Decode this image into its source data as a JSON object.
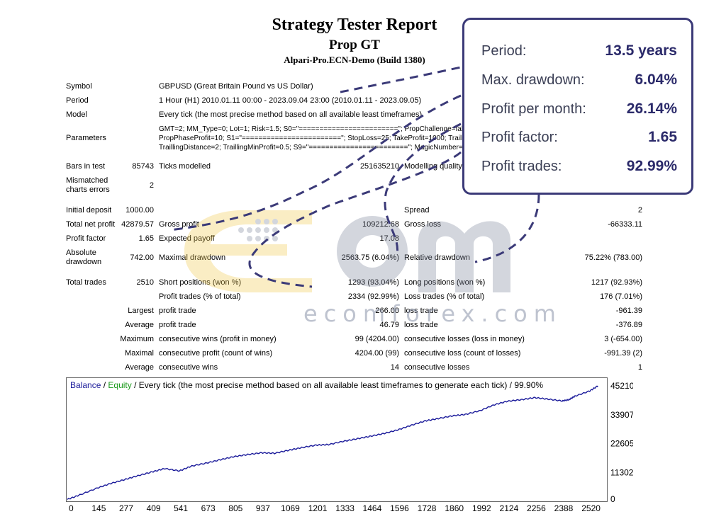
{
  "report": {
    "title": "Strategy Tester Report",
    "expert": "Prop GT",
    "server": "Alpari-Pro.ECN-Demo (Build 1380)"
  },
  "info": {
    "symbol_label": "Symbol",
    "symbol_value": "GBPUSD (Great Britain Pound vs US Dollar)",
    "period_label": "Period",
    "period_value": "1 Hour (H1) 2010.01.11 00:00 - 2023.09.04 23:00 (2010.01.11 - 2023.09.05)",
    "model_label": "Model",
    "model_value": "Every tick (the most precise method based on all available least timeframes)",
    "parameters_label": "Parameters",
    "parameters_line1": "GMT=2; MM_Type=0; Lot=1; Risk=1.5; S0=\"========================\"; PropChallenge=false; PropDailyDD=5; PropMaxDD=10;",
    "parameters_line2": "PropPhaseProfit=10; S1=\"========================\"; StopLoss=25; TakeProfit=1000; TrailingOn=true;",
    "parameters_line3": "TraillingDistance=2; TraillingMinProfit=0.5; S9=\"========================\"; MagicNumber=9542033; __com=\"Prop GT\";"
  },
  "bars": {
    "bars_label": "Bars in test",
    "bars_value": "85743",
    "ticks_label": "Ticks modelled",
    "ticks_value": "251635210",
    "quality_label": "Modelling quality",
    "mismatch_label_1": "Mismatched",
    "mismatch_label_2": "charts errors",
    "mismatch_value": "2"
  },
  "stats": {
    "initial_deposit_label": "Initial deposit",
    "initial_deposit": "1000.00",
    "spread_label": "Spread",
    "spread": "2",
    "total_net_profit_label": "Total net profit",
    "total_net_profit": "42879.57",
    "gross_profit_label": "Gross profit",
    "gross_profit": "109212.68",
    "gross_loss_label": "Gross loss",
    "gross_loss": "-66333.11",
    "profit_factor_label": "Profit factor",
    "profit_factor": "1.65",
    "expected_payoff_label": "Expected payoff",
    "expected_payoff": "17.08",
    "absolute_drawdown_label_1": "Absolute",
    "absolute_drawdown_label_2": "drawdown",
    "absolute_drawdown": "742.00",
    "maximal_drawdown_label": "Maximal drawdown",
    "maximal_drawdown": "2563.75 (6.04%)",
    "relative_drawdown_label": "Relative drawdown",
    "relative_drawdown": "75.22% (783.00)",
    "total_trades_label": "Total trades",
    "total_trades": "2510",
    "short_label": "Short positions (won %)",
    "short_value": "1293 (93.04%)",
    "long_label": "Long positions (won %)",
    "long_value": "1217 (92.93%)",
    "profit_trades_label": "Profit trades (% of total)",
    "profit_trades": "2334 (92.99%)",
    "loss_trades_label": "Loss trades (% of total)",
    "loss_trades": "176 (7.01%)",
    "largest_label": "Largest",
    "largest_profit_label": "profit trade",
    "largest_profit": "266.00",
    "largest_loss_label": "loss trade",
    "largest_loss": "-961.39",
    "average_label": "Average",
    "average_profit_label": "profit trade",
    "average_profit": "46.79",
    "average_loss_label": "loss trade",
    "average_loss": "-376.89",
    "maximum_label": "Maximum",
    "max_cons_wins_label": "consecutive wins (profit in money)",
    "max_cons_wins": "99 (4204.00)",
    "max_cons_losses_label": "consecutive losses (loss in money)",
    "max_cons_losses": "3 (-654.00)",
    "maximal_label": "Maximal",
    "maximal_cons_profit_label": "consecutive profit (count of wins)",
    "maximal_cons_profit": "4204.00 (99)",
    "maximal_cons_loss_label": "consecutive loss (count of losses)",
    "maximal_cons_loss": "-991.39 (2)",
    "average2_label": "Average",
    "avg_cons_wins_label": "consecutive wins",
    "avg_cons_wins": "14",
    "avg_cons_losses_label": "consecutive losses",
    "avg_cons_losses": "1"
  },
  "callout": {
    "period_label": "Period:",
    "period_value": "13.5 years",
    "drawdown_label": "Max. drawdown:",
    "drawdown_value": "6.04%",
    "ppm_label": "Profit per month:",
    "ppm_value": "26.14%",
    "pf_label": "Profit factor:",
    "pf_value": "1.65",
    "pt_label": "Profit trades:",
    "pt_value": "92.99%"
  },
  "watermark": {
    "text": "ecomforex.com"
  },
  "colors": {
    "balance": "#1a1a9a",
    "equity": "#1a9a1a",
    "callout_border": "#3b3a78",
    "brand_yellow": "#f2c94c",
    "brand_gray": "#7a8299"
  },
  "chart_data": {
    "type": "line",
    "legend_balance": "Balance",
    "legend_sep1": " / ",
    "legend_equity": "Equity",
    "legend_rest": " / Every tick (the most precise method based on all available least timeframes to generate each tick) / 99.90%",
    "x_ticks": [
      "0",
      "145",
      "277",
      "409",
      "541",
      "673",
      "805",
      "937",
      "1069",
      "1201",
      "1333",
      "1464",
      "1596",
      "1728",
      "1860",
      "1992",
      "2124",
      "2256",
      "2388",
      "2520"
    ],
    "y_ticks": [
      "45210",
      "33907",
      "22605",
      "11302",
      "0"
    ],
    "xlim": [
      0,
      2600
    ],
    "ylim": [
      0,
      45210
    ],
    "series": [
      {
        "name": "Balance",
        "x": [
          0,
          60,
          145,
          210,
          277,
          340,
          409,
          470,
          541,
          600,
          673,
          740,
          805,
          870,
          937,
          1000,
          1069,
          1130,
          1201,
          1260,
          1333,
          1400,
          1464,
          1530,
          1596,
          1660,
          1728,
          1790,
          1860,
          1920,
          1992,
          2060,
          2124,
          2190,
          2256,
          2320,
          2388,
          2420,
          2450,
          2520,
          2560
        ],
        "y": [
          700,
          2500,
          5200,
          7000,
          8500,
          10000,
          11500,
          12800,
          11900,
          13800,
          15000,
          16300,
          17500,
          18300,
          19000,
          18800,
          20000,
          21000,
          22000,
          22200,
          23500,
          24500,
          25500,
          26600,
          28000,
          29800,
          31500,
          32400,
          33500,
          34000,
          35500,
          37800,
          39200,
          39800,
          40600,
          40000,
          39300,
          39800,
          41200,
          43200,
          45210
        ]
      }
    ]
  }
}
